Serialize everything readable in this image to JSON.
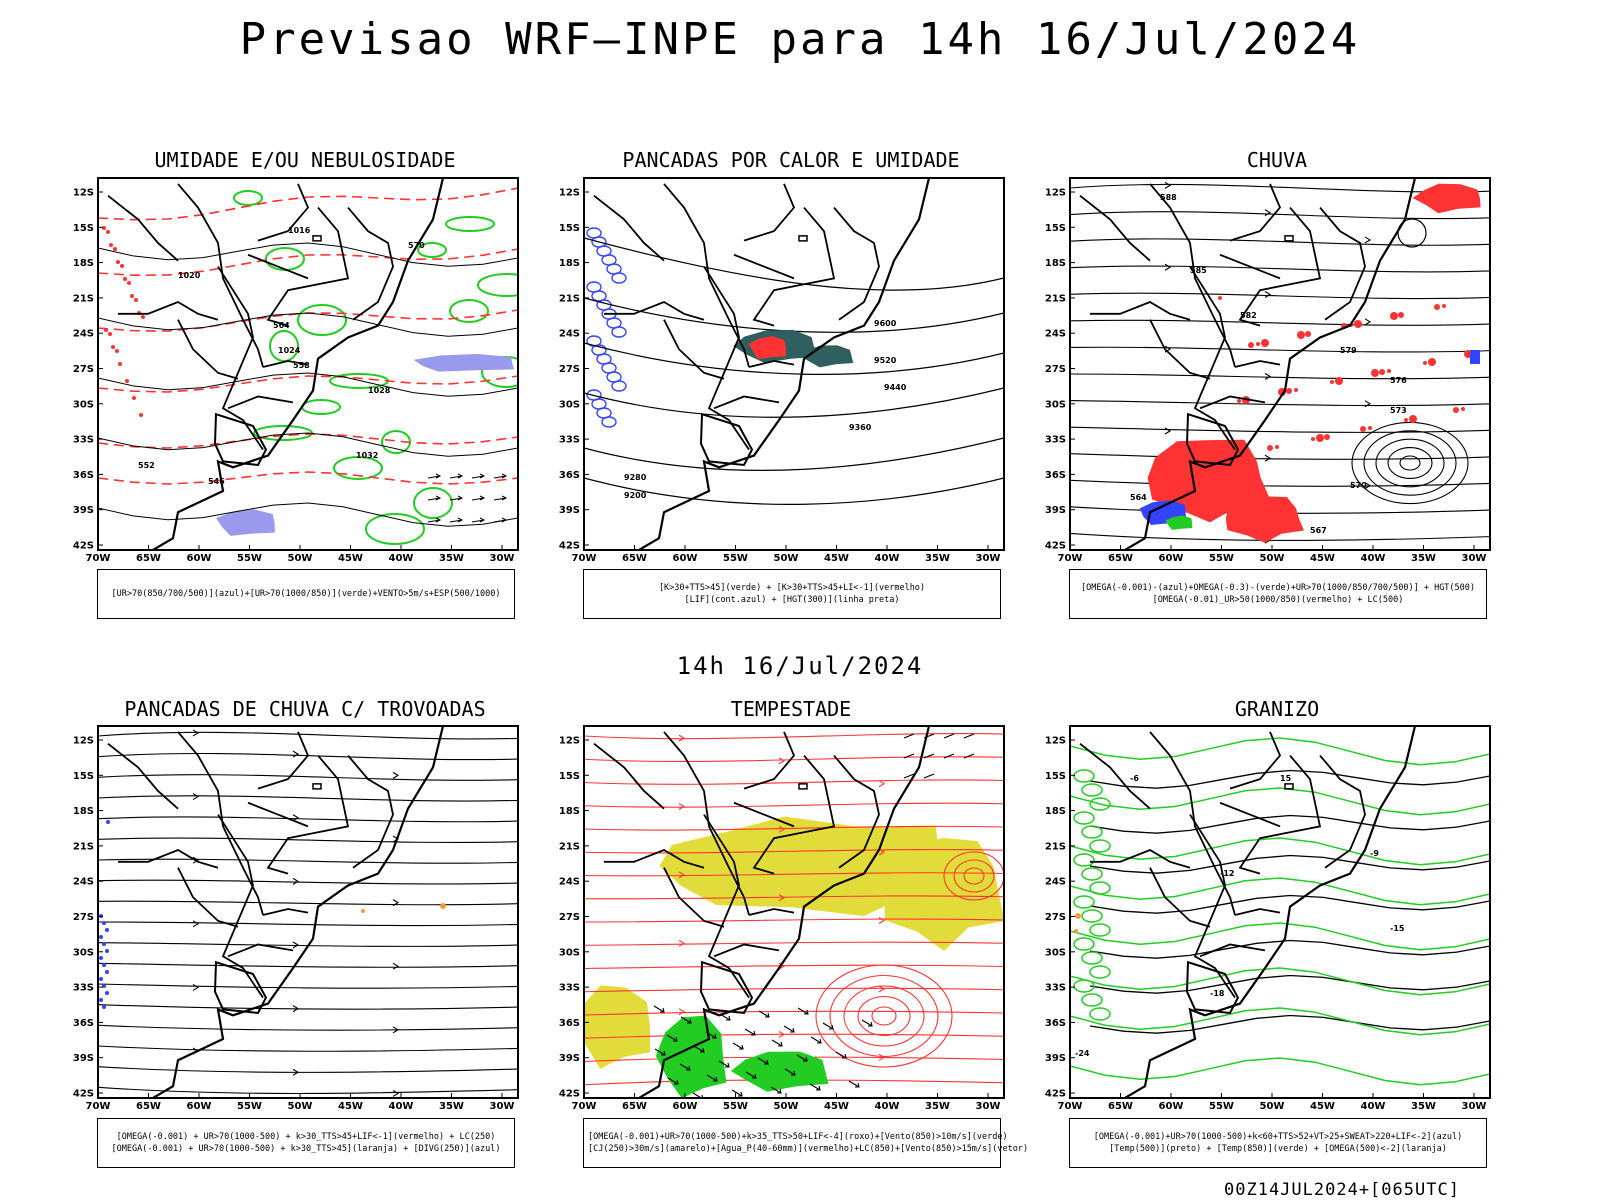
{
  "header": {
    "title": "Previsao WRF–INPE  para 14h 16/Jul/2024"
  },
  "subtitle": "14h  16/Jul/2024",
  "footer": "00Z14JUL2024+[065UTC]",
  "axes": {
    "lat_labels": [
      "12S",
      "15S",
      "18S",
      "21S",
      "24S",
      "27S",
      "30S",
      "33S",
      "36S",
      "39S",
      "42S"
    ],
    "lon_labels": [
      "70W",
      "65W",
      "60W",
      "55W",
      "50W",
      "45W",
      "40W",
      "35W",
      "30W"
    ]
  },
  "colors": {
    "green": "#22cc22",
    "red": "#ff3333",
    "blue": "#3344ff",
    "yellow": "#e2dc3a",
    "lavender": "#9999ee",
    "orange": "#ff9933",
    "teal": "#2f5f5f"
  },
  "panels": [
    {
      "title": "UMIDADE E/OU NEBULOSIDADE",
      "legend": [
        "[UR>70(850/700/500)](azul)+[UR>70(1000/850)](verde)+VENTO>5m/s+ESP(500/1000)"
      ],
      "contour_labels": [
        "1020",
        "1024",
        "1032",
        "1028",
        "1016",
        "570",
        "564",
        "558",
        "552",
        "546"
      ]
    },
    {
      "title": "PANCADAS POR CALOR E UMIDADE",
      "legend": [
        "[K>30+TTS>45](verde) + [K>30+TTS>45+LI<-1](vermelho)",
        "[LIF](cont.azul) + [HGT(300)](linha preta)"
      ],
      "contour_labels": [
        "9600",
        "9520",
        "9440",
        "9360",
        "9280",
        "9200"
      ]
    },
    {
      "title": "CHUVA",
      "legend": [
        "[OMEGA(-0.001)-(azul)+OMEGA(-0.3)-(verde)+UR>70(1000/850/700/500)] + HGT(500)",
        "[OMEGA(-0.01)_UR>50(1000/850)(vermelho) + LC(500)"
      ],
      "contour_labels": [
        "588",
        "585",
        "582",
        "579",
        "576",
        "573",
        "570",
        "567",
        "564"
      ]
    },
    {
      "title": "PANCADAS DE CHUVA C/ TROVOADAS",
      "legend": [
        "[OMEGA(-0.001) + UR>70(1000-500) + k>30_TTS>45+LIF<-1](vermelho) + LC(250)",
        "[OMEGA(-0.001) + UR>70(1000-500) + k>30_TTS>45](laranja) + [DIVG(250)](azul)"
      ],
      "contour_labels": []
    },
    {
      "title": "TEMPESTADE",
      "legend": [
        "[OMEGA(-0.001)+UR>70(1000-500)+k>35_TTS>50+LIF<-4](roxo)+[Vento(850)>10m/s](verde)",
        "[CJ(250)>30m/s](amarelo)+[Agua_P(40-60mm)](vermelho)+LC(850)+[Vento(850)>15m/s](vetor)"
      ],
      "contour_labels": []
    },
    {
      "title": "GRANIZO",
      "legend": [
        "[OMEGA(-0.001)+UR>70(1000-500)+k<60+TTS>52+VT>25+SWEAT>220+LIF<-2](azul)",
        "[Temp(500)](preto) + [Temp(850)](verde) + [OMEGA(500)<-2](laranja)"
      ],
      "contour_labels": [
        "-6",
        "-9",
        "-12",
        "-15",
        "-18",
        "-24",
        "15"
      ]
    }
  ]
}
